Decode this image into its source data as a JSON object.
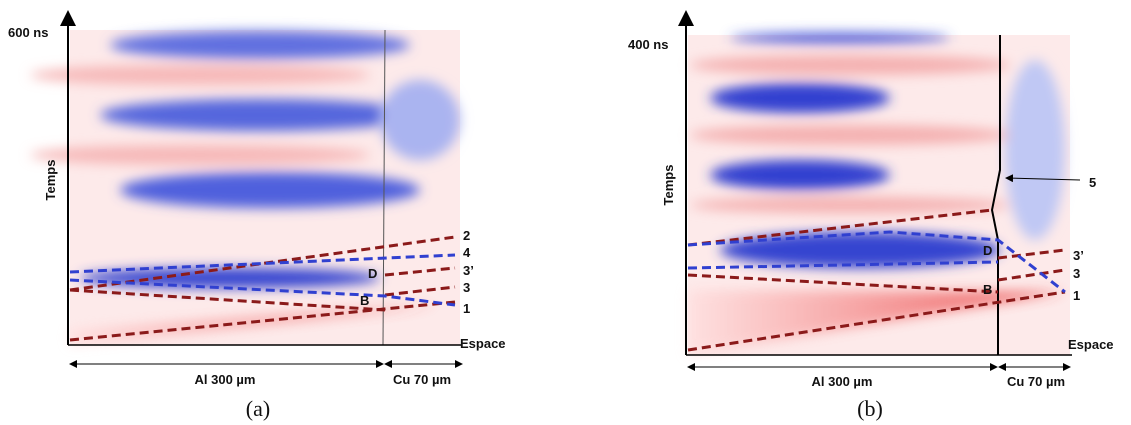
{
  "panels": [
    {
      "time_label": "600 ns",
      "y_label": "Temps",
      "x_label": "Espace",
      "materials": [
        "Al 300 µm",
        "Cu 70 µm"
      ],
      "wave_labels": [
        "2",
        "4",
        "3’",
        "3",
        "1",
        "D",
        "B"
      ],
      "caption": "(a)"
    },
    {
      "time_label": "400 ns",
      "y_label": "Temps",
      "x_label": "Espace",
      "materials": [
        "Al 300 µm",
        "Cu 70 µm"
      ],
      "wave_labels": [
        "5",
        "3’",
        "3",
        "1",
        "D",
        "B"
      ],
      "caption": "(b)"
    }
  ]
}
